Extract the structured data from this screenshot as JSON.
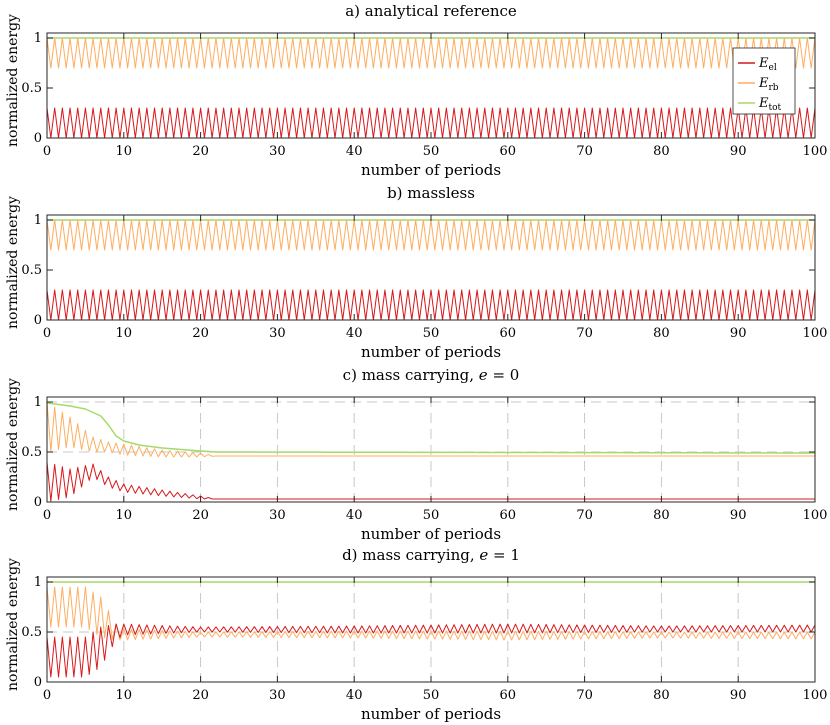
{
  "figure": {
    "colors": {
      "E_el": "#d7191c",
      "E_rb": "#fdae61",
      "E_tot": "#a6d96a",
      "grid": "#c8c8c8",
      "axis": "#262626"
    },
    "legend": [
      {
        "key": "E_el",
        "base": "E",
        "sub": "el"
      },
      {
        "key": "E_rb",
        "base": "E",
        "sub": "rb"
      },
      {
        "key": "E_tot",
        "base": "E",
        "sub": "tot"
      }
    ]
  },
  "chart_data": [
    {
      "type": "line",
      "title": "a) analytical reference",
      "xlabel": "number of periods",
      "ylabel": "normalized energy",
      "xlim": [
        0,
        100
      ],
      "ylim": [
        0,
        1.05
      ],
      "xticks": [
        0,
        10,
        20,
        30,
        40,
        50,
        60,
        70,
        80,
        90,
        100
      ],
      "yticks": [
        0,
        0.5,
        1
      ],
      "ytick_labels": [
        "0",
        "0.5",
        "1"
      ],
      "grid": false,
      "legend": "top-right",
      "series": [
        {
          "name": "E_el",
          "behavior": "oscillating",
          "x": [
            0,
            100
          ],
          "min": [
            0.0,
            0.0
          ],
          "max": [
            0.3,
            0.3
          ]
        },
        {
          "name": "E_rb",
          "behavior": "oscillating",
          "x": [
            0,
            100
          ],
          "min": [
            0.7,
            0.7
          ],
          "max": [
            1.0,
            1.0
          ]
        },
        {
          "name": "E_tot",
          "behavior": "constant",
          "x": [
            0,
            100
          ],
          "y": [
            1.0,
            1.0
          ]
        }
      ]
    },
    {
      "type": "line",
      "title": "b) massless",
      "xlabel": "number of periods",
      "ylabel": "normalized energy",
      "xlim": [
        0,
        100
      ],
      "ylim": [
        0,
        1.05
      ],
      "xticks": [
        0,
        10,
        20,
        30,
        40,
        50,
        60,
        70,
        80,
        90,
        100
      ],
      "yticks": [
        0,
        0.5,
        1
      ],
      "ytick_labels": [
        "0",
        "0.5",
        "1"
      ],
      "grid": false,
      "series": [
        {
          "name": "E_el",
          "behavior": "oscillating",
          "x": [
            0,
            100
          ],
          "min": [
            0.0,
            0.0
          ],
          "max": [
            0.3,
            0.3
          ]
        },
        {
          "name": "E_rb",
          "behavior": "oscillating",
          "x": [
            0,
            100
          ],
          "min": [
            0.7,
            0.7
          ],
          "max": [
            1.0,
            1.0
          ]
        },
        {
          "name": "E_tot",
          "behavior": "constant",
          "x": [
            0,
            100
          ],
          "y": [
            1.0,
            1.0
          ]
        }
      ]
    },
    {
      "type": "line",
      "title": "c) mass carrying, e = 0",
      "xlabel": "number of periods",
      "ylabel": "normalized energy",
      "xlim": [
        0,
        100
      ],
      "ylim": [
        0,
        1.05
      ],
      "xticks": [
        0,
        10,
        20,
        30,
        40,
        50,
        60,
        70,
        80,
        90,
        100
      ],
      "yticks": [
        0,
        0.5,
        1
      ],
      "ytick_labels": [
        "0",
        "0.5",
        "1"
      ],
      "grid": true,
      "series": [
        {
          "name": "E_el",
          "behavior": "oscillating",
          "x": [
            0,
            3,
            6,
            8,
            10,
            15,
            20,
            22,
            100
          ],
          "min": [
            0.0,
            0.05,
            0.25,
            0.15,
            0.1,
            0.06,
            0.03,
            0.03,
            0.03
          ],
          "max": [
            0.4,
            0.33,
            0.38,
            0.25,
            0.18,
            0.12,
            0.06,
            0.03,
            0.03
          ]
        },
        {
          "name": "E_rb",
          "behavior": "oscillating",
          "x": [
            0,
            3,
            6,
            8,
            10,
            15,
            20,
            22,
            100
          ],
          "min": [
            0.5,
            0.55,
            0.5,
            0.5,
            0.47,
            0.45,
            0.45,
            0.46,
            0.46
          ],
          "max": [
            1.0,
            0.85,
            0.65,
            0.6,
            0.58,
            0.52,
            0.49,
            0.46,
            0.46
          ]
        },
        {
          "name": "E_tot",
          "behavior": "smooth",
          "x": [
            0,
            3,
            5,
            7,
            8,
            9,
            10,
            12,
            15,
            20,
            22,
            100
          ],
          "y": [
            0.99,
            0.96,
            0.93,
            0.86,
            0.77,
            0.66,
            0.61,
            0.57,
            0.54,
            0.51,
            0.5,
            0.49
          ]
        }
      ]
    },
    {
      "type": "line",
      "title": "d) mass carrying, e = 1",
      "xlabel": "number of periods",
      "ylabel": "normalized energy",
      "xlim": [
        0,
        100
      ],
      "ylim": [
        0,
        1.05
      ],
      "xticks": [
        0,
        10,
        20,
        30,
        40,
        50,
        60,
        70,
        80,
        90,
        100
      ],
      "yticks": [
        0,
        0.5,
        1
      ],
      "ytick_labels": [
        "0",
        "0.5",
        "1"
      ],
      "grid": true,
      "series": [
        {
          "name": "E_el",
          "behavior": "oscillating",
          "x": [
            0,
            5,
            7,
            9,
            10,
            20,
            40,
            60,
            80,
            100
          ],
          "min": [
            0.05,
            0.05,
            0.15,
            0.42,
            0.47,
            0.5,
            0.49,
            0.49,
            0.5,
            0.5
          ],
          "max": [
            0.45,
            0.45,
            0.55,
            0.58,
            0.58,
            0.55,
            0.56,
            0.58,
            0.56,
            0.57
          ]
        },
        {
          "name": "E_rb",
          "behavior": "oscillating",
          "x": [
            0,
            5,
            7,
            9,
            10,
            20,
            40,
            60,
            80,
            100
          ],
          "min": [
            0.55,
            0.55,
            0.45,
            0.42,
            0.42,
            0.45,
            0.44,
            0.42,
            0.44,
            0.43
          ],
          "max": [
            0.95,
            0.95,
            0.85,
            0.58,
            0.53,
            0.5,
            0.51,
            0.51,
            0.5,
            0.5
          ]
        },
        {
          "name": "E_tot",
          "behavior": "constant",
          "x": [
            0,
            100
          ],
          "y": [
            1.0,
            1.0
          ]
        }
      ]
    }
  ]
}
